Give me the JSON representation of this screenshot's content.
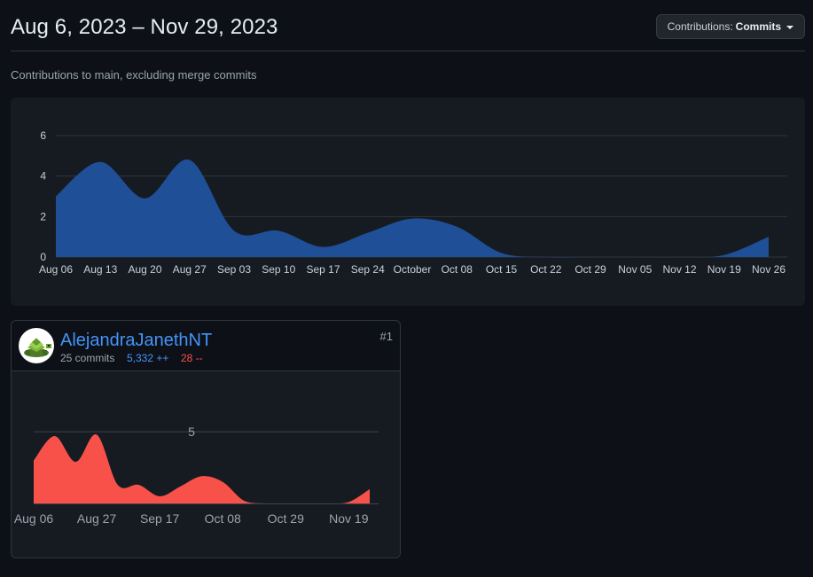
{
  "header": {
    "range_title": "Aug 6, 2023 – Nov 29, 2023",
    "dropdown_prefix": "Contributions:",
    "dropdown_value": "Commits"
  },
  "subtitle": "Contributions to main, excluding merge commits",
  "chart_data": [
    {
      "type": "area",
      "title": "",
      "x": [
        "Aug 06",
        "Aug 13",
        "Aug 20",
        "Aug 27",
        "Sep 03",
        "Sep 10",
        "Sep 17",
        "Sep 24",
        "October",
        "Oct 08",
        "Oct 15",
        "Oct 22",
        "Oct 29",
        "Nov 05",
        "Nov 12",
        "Nov 19",
        "Nov 26"
      ],
      "series": [
        {
          "values": [
            3,
            4.7,
            2.9,
            4.8,
            1.3,
            1.3,
            0.5,
            1.2,
            1.9,
            1.5,
            0.2,
            0,
            0,
            0,
            0,
            0.1,
            1
          ]
        }
      ],
      "ylim": [
        0,
        6
      ],
      "yticks": [
        "0",
        "2",
        "4",
        "6"
      ],
      "grid": true,
      "color": "#1f4f96"
    },
    {
      "type": "area",
      "title": "",
      "x_ticks": [
        "Aug 06",
        "Aug 27",
        "Sep 17",
        "Oct 08",
        "Oct 29",
        "Nov 19"
      ],
      "x": [
        "Aug 06",
        "Aug 13",
        "Aug 20",
        "Aug 27",
        "Sep 03",
        "Sep 10",
        "Sep 17",
        "Sep 24",
        "October",
        "Oct 08",
        "Oct 15",
        "Oct 22",
        "Oct 29",
        "Nov 05",
        "Nov 12",
        "Nov 19",
        "Nov 26"
      ],
      "series": [
        {
          "values": [
            3,
            4.7,
            2.9,
            4.8,
            1.3,
            1.3,
            0.5,
            1.2,
            1.9,
            1.5,
            0.2,
            0,
            0,
            0,
            0,
            0.1,
            1
          ]
        }
      ],
      "ylim": [
        0,
        6
      ],
      "gridline_label": "5",
      "color": "#f85149"
    }
  ],
  "contributor": {
    "name": "AlejandraJanethNT",
    "commits": "25 commits",
    "additions": "5,332 ++",
    "deletions": "28 --",
    "rank": "#1"
  }
}
